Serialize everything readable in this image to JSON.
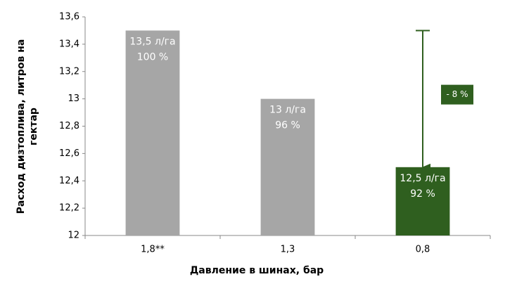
{
  "chart_data": {
    "type": "bar",
    "y_label": [
      "Расход дизтоплива, литров на",
      "гектар"
    ],
    "x_label": "Давление в шинах, бар",
    "categories": [
      "1,8**",
      "1,3",
      "0,8"
    ],
    "values": [
      13.5,
      13,
      12.5
    ],
    "value_labels": [
      "13,5 л/га",
      "13 л/га",
      "12,5 л/га"
    ],
    "percent_labels": [
      "100 %",
      "96 %",
      "92 %"
    ],
    "colors": [
      "#a6a6a6",
      "#a6a6a6",
      "#2f5f1f"
    ],
    "annotation": "- 8 %",
    "annotation_color": "#2f5f1f",
    "ylim": [
      12,
      13.6
    ],
    "yticks": [
      12,
      {
        "value": 12.2,
        "label": "12,2"
      },
      {
        "value": 12.4,
        "label": "12,4"
      },
      {
        "value": 12.6,
        "label": "12,6"
      },
      {
        "value": 12.8,
        "label": "12,8"
      },
      13,
      {
        "value": 13.2,
        "label": "13,2"
      },
      {
        "value": 13.4,
        "label": "13,4"
      },
      {
        "value": 13.6,
        "label": "13,6"
      }
    ],
    "grid": false
  }
}
